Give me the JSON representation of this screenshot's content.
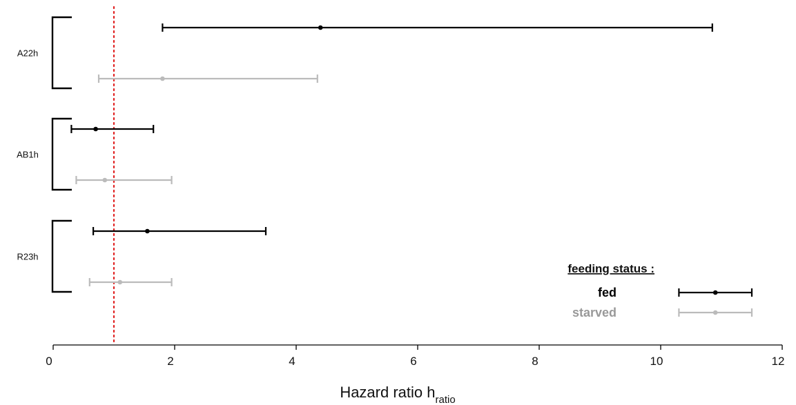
{
  "chart_data": {
    "type": "forest",
    "xlabel_main": "Hazard ratio h",
    "xlabel_sub": "ratio",
    "xlim": [
      0,
      12
    ],
    "xticks": [
      0,
      2,
      4,
      6,
      8,
      10,
      12
    ],
    "reference_line": {
      "x": 1,
      "style": "dotted",
      "color": "#e02020"
    },
    "groups": [
      {
        "label": "A22h",
        "rows": [
          {
            "series": "fed",
            "estimate": 4.4,
            "lower": 1.8,
            "upper": 10.85
          },
          {
            "series": "starved",
            "estimate": 1.8,
            "lower": 0.75,
            "upper": 4.35
          }
        ]
      },
      {
        "label": "AB1h",
        "rows": [
          {
            "series": "fed",
            "estimate": 0.7,
            "lower": 0.3,
            "upper": 1.65
          },
          {
            "series": "starved",
            "estimate": 0.85,
            "lower": 0.38,
            "upper": 1.95
          }
        ]
      },
      {
        "label": "R23h",
        "rows": [
          {
            "series": "fed",
            "estimate": 1.55,
            "lower": 0.66,
            "upper": 3.5
          },
          {
            "series": "starved",
            "estimate": 1.1,
            "lower": 0.6,
            "upper": 1.95
          }
        ]
      }
    ],
    "series": [
      {
        "name": "fed",
        "color": "#000000"
      },
      {
        "name": "starved",
        "color": "#bbbbbb"
      }
    ],
    "legend": {
      "title": "feeding status :",
      "position": "bottom-right",
      "sample": {
        "estimate": 10.9,
        "lower": 10.3,
        "upper": 11.5
      }
    },
    "label_colors": {
      "fed": "#000000",
      "starved": "#999999"
    },
    "grid": false
  }
}
